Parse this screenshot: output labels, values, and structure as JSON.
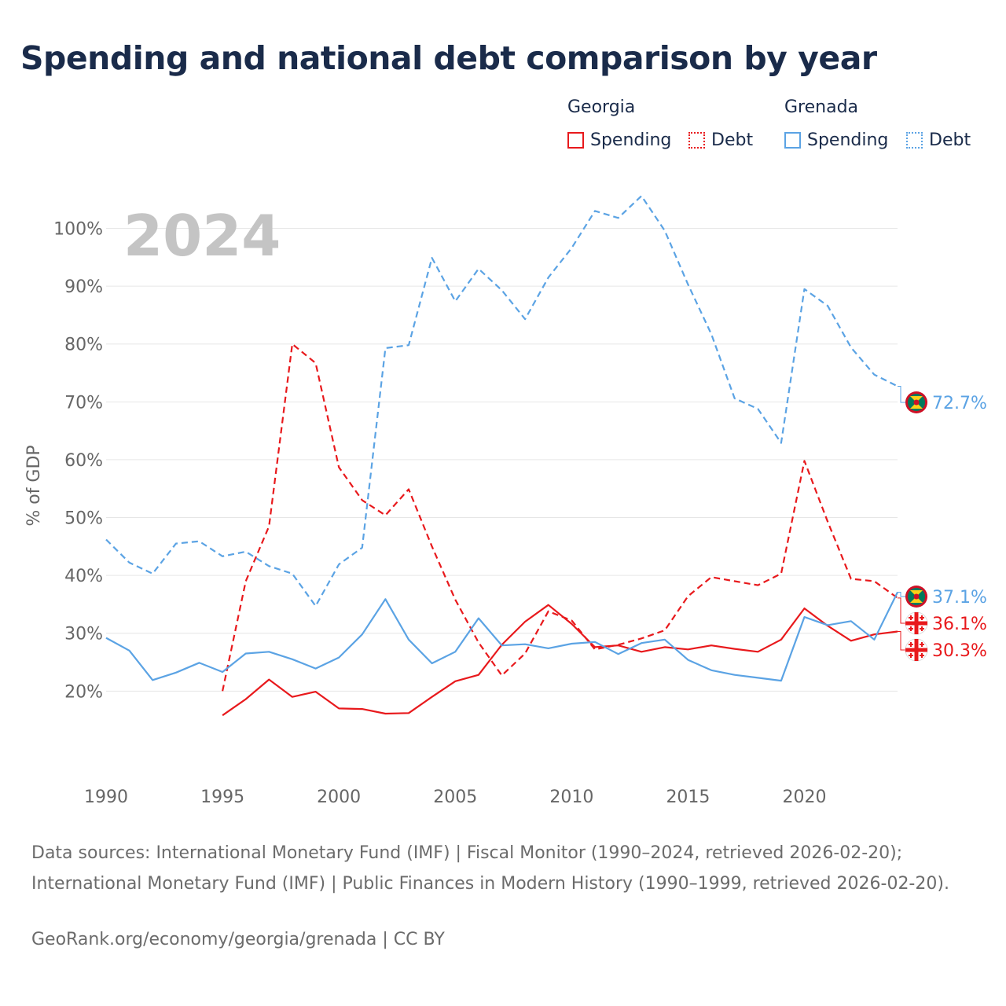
{
  "chart_data": {
    "type": "line",
    "title": "Spending and national debt comparison by year",
    "ylabel": "% of GDP",
    "year_label": "2024",
    "xlim": [
      1990,
      2024
    ],
    "ylim": [
      7,
      107
    ],
    "y_ticks": [
      20,
      30,
      40,
      50,
      60,
      70,
      80,
      90,
      100
    ],
    "y_tick_labels": [
      "20%",
      "30%",
      "40%",
      "50%",
      "60%",
      "70%",
      "80%",
      "90%",
      "100%"
    ],
    "x_ticks": [
      1990,
      1995,
      2000,
      2005,
      2010,
      2015,
      2020
    ],
    "x_tick_labels": [
      "1990",
      "1995",
      "2000",
      "2005",
      "2010",
      "2015",
      "2020"
    ],
    "legend": {
      "groups": [
        {
          "name": "Georgia",
          "items": [
            {
              "label": "Spending",
              "style": "solid"
            },
            {
              "label": "Debt",
              "style": "dotted"
            }
          ]
        },
        {
          "name": "Grenada",
          "items": [
            {
              "label": "Spending",
              "style": "solid"
            },
            {
              "label": "Debt",
              "style": "dotted"
            }
          ]
        }
      ]
    },
    "series": [
      {
        "name": "Georgia Spending",
        "country": "Georgia",
        "color": "#e8191c",
        "dash": "solid",
        "x": [
          1995,
          1996,
          1997,
          1998,
          1999,
          2000,
          2001,
          2002,
          2003,
          2004,
          2005,
          2006,
          2007,
          2008,
          2009,
          2010,
          2011,
          2012,
          2013,
          2014,
          2015,
          2016,
          2017,
          2018,
          2019,
          2020,
          2021,
          2022,
          2023,
          2024
        ],
        "values": [
          15.8,
          18.6,
          22.0,
          19.0,
          19.9,
          17.0,
          16.9,
          16.1,
          16.2,
          19.0,
          21.7,
          22.8,
          28.0,
          32.0,
          34.9,
          31.6,
          27.6,
          27.9,
          26.8,
          27.6,
          27.2,
          27.9,
          27.3,
          26.8,
          28.9,
          34.3,
          31.3,
          28.7,
          29.8,
          30.3
        ],
        "end_label": "30.3%"
      },
      {
        "name": "Georgia Debt",
        "country": "Georgia",
        "color": "#e8191c",
        "dash": "dashed",
        "x": [
          1995,
          1996,
          1997,
          1998,
          1999,
          2000,
          2001,
          2002,
          2003,
          2004,
          2005,
          2006,
          2007,
          2008,
          2009,
          2010,
          2011,
          2012,
          2013,
          2014,
          2015,
          2016,
          2017,
          2018,
          2019,
          2020,
          2021,
          2022,
          2023,
          2024
        ],
        "values": [
          20.0,
          39.0,
          48.5,
          80.0,
          76.7,
          58.7,
          53.0,
          50.4,
          54.9,
          45.0,
          35.8,
          28.4,
          22.7,
          26.5,
          33.8,
          32.2,
          27.2,
          28.0,
          29.1,
          30.5,
          36.4,
          39.7,
          39.0,
          38.3,
          40.3,
          59.8,
          49.3,
          39.4,
          39.0,
          36.1
        ],
        "end_label": "36.1%"
      },
      {
        "name": "Grenada Spending",
        "country": "Grenada",
        "color": "#5ba3e4",
        "dash": "solid",
        "x": [
          1990,
          1991,
          1992,
          1993,
          1994,
          1995,
          1996,
          1997,
          1998,
          1999,
          2000,
          2001,
          2002,
          2003,
          2004,
          2005,
          2006,
          2007,
          2008,
          2009,
          2010,
          2011,
          2012,
          2013,
          2014,
          2015,
          2016,
          2017,
          2018,
          2019,
          2020,
          2021,
          2022,
          2023,
          2024
        ],
        "values": [
          29.2,
          27.0,
          21.9,
          23.2,
          24.9,
          23.3,
          26.5,
          26.8,
          25.5,
          23.9,
          25.8,
          29.8,
          35.9,
          28.9,
          24.8,
          26.8,
          32.6,
          27.9,
          28.1,
          27.4,
          28.2,
          28.5,
          26.4,
          28.3,
          28.9,
          25.4,
          23.6,
          22.8,
          22.3,
          21.8,
          32.8,
          31.4,
          32.1,
          28.9,
          37.1
        ],
        "end_label": "37.1%"
      },
      {
        "name": "Grenada Debt",
        "country": "Grenada",
        "color": "#5ba3e4",
        "dash": "dashed",
        "x": [
          1990,
          1991,
          1992,
          1993,
          1994,
          1995,
          1996,
          1997,
          1998,
          1999,
          2000,
          2001,
          2002,
          2003,
          2004,
          2005,
          2006,
          2007,
          2008,
          2009,
          2010,
          2011,
          2012,
          2013,
          2014,
          2015,
          2016,
          2017,
          2018,
          2019,
          2020,
          2021,
          2022,
          2023,
          2024
        ],
        "values": [
          46.2,
          42.2,
          40.3,
          45.5,
          45.9,
          43.3,
          44.1,
          41.6,
          40.3,
          34.7,
          41.9,
          44.8,
          79.3,
          79.8,
          94.9,
          87.4,
          93.0,
          89.3,
          84.3,
          91.5,
          96.6,
          103.0,
          101.8,
          105.6,
          99.6,
          90.3,
          81.7,
          70.6,
          68.8,
          62.9,
          89.5,
          86.6,
          79.4,
          74.7,
          72.7
        ],
        "end_label": "72.7%"
      }
    ]
  },
  "sources": "Data sources: International Monetary Fund (IMF) | Fiscal Monitor (1990–2024, retrieved 2026-02-20); International Monetary Fund (IMF) | Public Finances in Modern History (1990–1999, retrieved 2026-02-20).",
  "credit": "GeoRank.org/economy/georgia/grenada | CC BY",
  "colors": {
    "georgia": "#e8191c",
    "grenada": "#5ba3e4",
    "grid": "#e6e6e6",
    "axis_text": "#666666",
    "year": "#c4c4c4"
  }
}
